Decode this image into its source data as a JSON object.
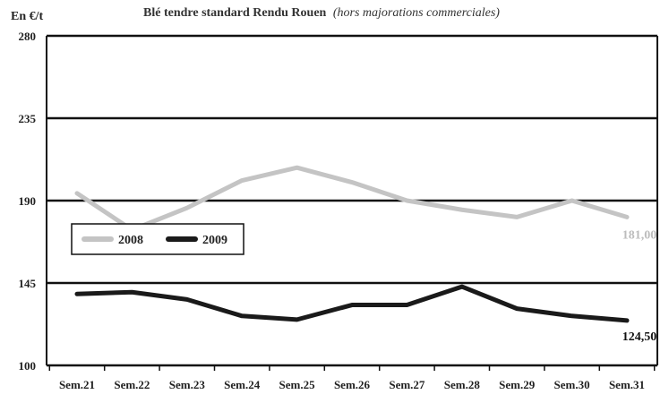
{
  "chart_data": {
    "type": "line",
    "title": "Blé tendre standard Rendu Rouen",
    "subtitle": "(hors majorations commerciales)",
    "ylabel": "En €/t",
    "xlabel": "",
    "categories": [
      "Sem.21",
      "Sem.22",
      "Sem.23",
      "Sem.24",
      "Sem.25",
      "Sem.26",
      "Sem.27",
      "Sem.28",
      "Sem.29",
      "Sem.30",
      "Sem.31"
    ],
    "yticks": [
      "100",
      "145",
      "190",
      "235",
      "280"
    ],
    "ylim": [
      100,
      280
    ],
    "grid": true,
    "legend_position": "left-center",
    "series": [
      {
        "name": "2008",
        "color": "#c4c4c4",
        "values": [
          194,
          174,
          186,
          201,
          208,
          200,
          190,
          185,
          181,
          190,
          181
        ],
        "end_label": "181,00"
      },
      {
        "name": "2009",
        "color": "#1a1a1a",
        "values": [
          139,
          140,
          136,
          127,
          125,
          133,
          133,
          143,
          131,
          127,
          124.5
        ],
        "end_label": "124,50"
      }
    ]
  }
}
